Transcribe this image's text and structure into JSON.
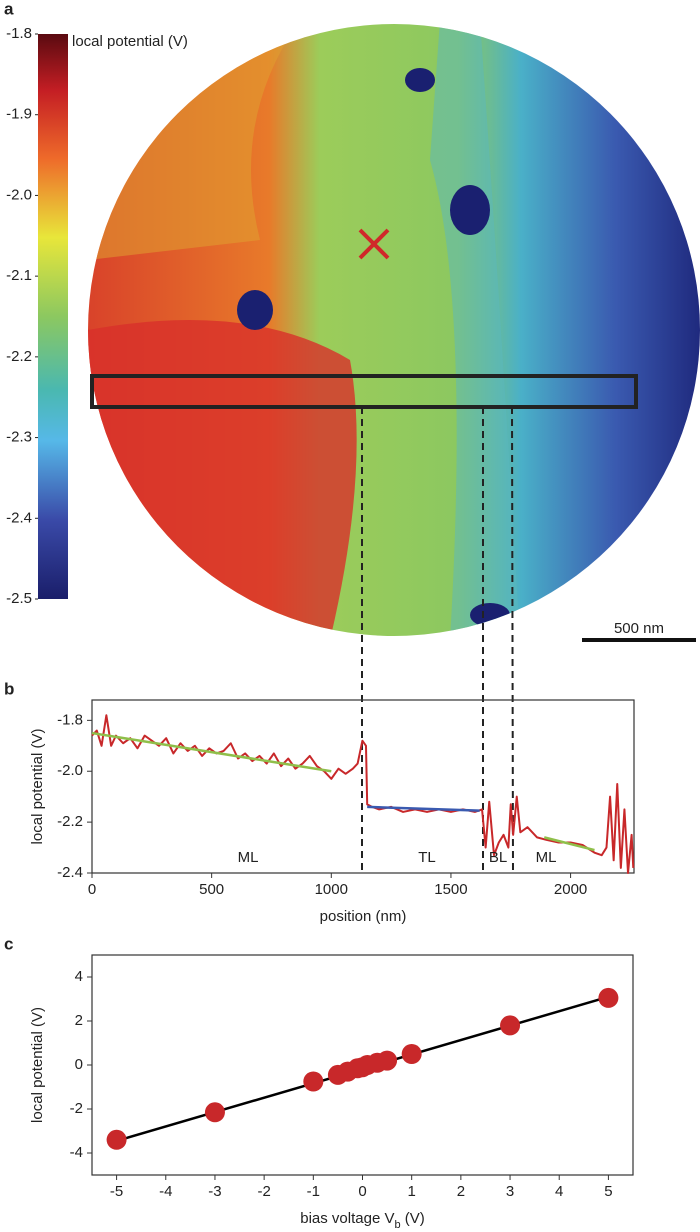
{
  "chart_data": [
    {
      "type": "image",
      "panel": "a",
      "colorbar": {
        "label": "local potential (V)",
        "lim": [
          -2.5,
          -1.8
        ],
        "ticks": [
          -1.8,
          -1.9,
          {
            "value": -2,
            "label": "-2.0"
          },
          -2.1,
          -2.2,
          -2.3,
          -2.4,
          -2.5
        ]
      },
      "scalebar": "500 nm"
    },
    {
      "type": "line",
      "panel": "b",
      "xlabel": "position (nm)",
      "ylabel": "local potential (V)",
      "xlim": [
        0,
        2265
      ],
      "ylim": [
        -2.4,
        -1.72
      ],
      "xticks": [
        0,
        500,
        1000,
        1500,
        2000
      ],
      "yticks": [
        -1.8,
        {
          "value": -2,
          "label": "-2.0"
        },
        -2.2,
        -2.4
      ],
      "annotations": [
        "ML",
        "TL",
        "BL",
        "ML"
      ],
      "series": [
        {
          "color": "#c8282a",
          "x": [
            0,
            20,
            40,
            60,
            80,
            100,
            130,
            160,
            190,
            220,
            250,
            280,
            310,
            340,
            370,
            400,
            430,
            460,
            490,
            520,
            550,
            580,
            610,
            640,
            670,
            700,
            730,
            760,
            790,
            820,
            850,
            880,
            910,
            940,
            970,
            1000,
            1030,
            1060,
            1090,
            1110,
            1130,
            1145,
            1150,
            1170,
            1200,
            1250,
            1300,
            1350,
            1400,
            1450,
            1500,
            1550,
            1600,
            1630,
            1645,
            1660,
            1680,
            1700,
            1720,
            1740,
            1750,
            1760,
            1775,
            1790,
            1820,
            1860,
            1900,
            1950,
            2000,
            2050,
            2100,
            2130,
            2150,
            2165,
            2180,
            2195,
            2210,
            2225,
            2240,
            2255,
            2262
          ],
          "values": [
            -1.86,
            -1.84,
            -1.9,
            -1.78,
            -1.9,
            -1.86,
            -1.89,
            -1.87,
            -1.91,
            -1.86,
            -1.88,
            -1.9,
            -1.87,
            -1.93,
            -1.89,
            -1.92,
            -1.9,
            -1.94,
            -1.91,
            -1.93,
            -1.92,
            -1.89,
            -1.95,
            -1.93,
            -1.96,
            -1.94,
            -1.97,
            -1.93,
            -1.98,
            -1.95,
            -1.99,
            -1.97,
            -1.94,
            -1.98,
            -2.0,
            -2.03,
            -1.99,
            -2.01,
            -1.99,
            -1.97,
            -1.88,
            -1.9,
            -2.13,
            -2.14,
            -2.15,
            -2.14,
            -2.16,
            -2.15,
            -2.16,
            -2.15,
            -2.16,
            -2.15,
            -2.16,
            -2.15,
            -2.3,
            -2.12,
            -2.33,
            -2.28,
            -2.25,
            -2.3,
            -2.13,
            -2.25,
            -2.1,
            -2.24,
            -2.22,
            -2.26,
            -2.27,
            -2.28,
            -2.28,
            -2.29,
            -2.32,
            -2.33,
            -2.3,
            -2.1,
            -2.35,
            -2.05,
            -2.38,
            -2.15,
            -2.4,
            -2.25,
            -2.38
          ]
        },
        {
          "color": "#8fbf4a",
          "x": [
            0,
            1000
          ],
          "values": [
            -1.85,
            -2.0
          ]
        },
        {
          "color": "#3a5ab0",
          "x": [
            1150,
            1620
          ],
          "values": [
            -2.14,
            -2.155
          ]
        },
        {
          "color": "#8fbf4a",
          "x": [
            1890,
            2100
          ],
          "values": [
            -2.26,
            -2.31
          ]
        }
      ]
    },
    {
      "type": "scatter",
      "panel": "c",
      "xlabel": [
        "bias voltage V",
        "b",
        " (V)"
      ],
      "ylabel": "local potential (V)",
      "xlim": [
        -5.5,
        5.5
      ],
      "ylim": [
        -5,
        5
      ],
      "xticks": [
        -5,
        -4,
        -3,
        -2,
        -1,
        0,
        1,
        2,
        3,
        4,
        5
      ],
      "yticks": [
        -4,
        -2,
        0,
        2,
        4
      ],
      "series": [
        {
          "type": "scatter",
          "color": "#c8282a",
          "x": [
            -5,
            -3,
            -1,
            -0.5,
            -0.3,
            -0.1,
            0,
            0.1,
            0.3,
            0.5,
            1,
            3,
            5
          ],
          "values": [
            -3.4,
            -2.15,
            -0.75,
            -0.45,
            -0.3,
            -0.15,
            -0.1,
            0,
            0.1,
            0.2,
            0.5,
            1.8,
            3.05
          ]
        },
        {
          "type": "line",
          "color": "#000000",
          "x": [
            -5,
            5
          ],
          "values": [
            -3.45,
            3.1
          ]
        }
      ]
    }
  ]
}
